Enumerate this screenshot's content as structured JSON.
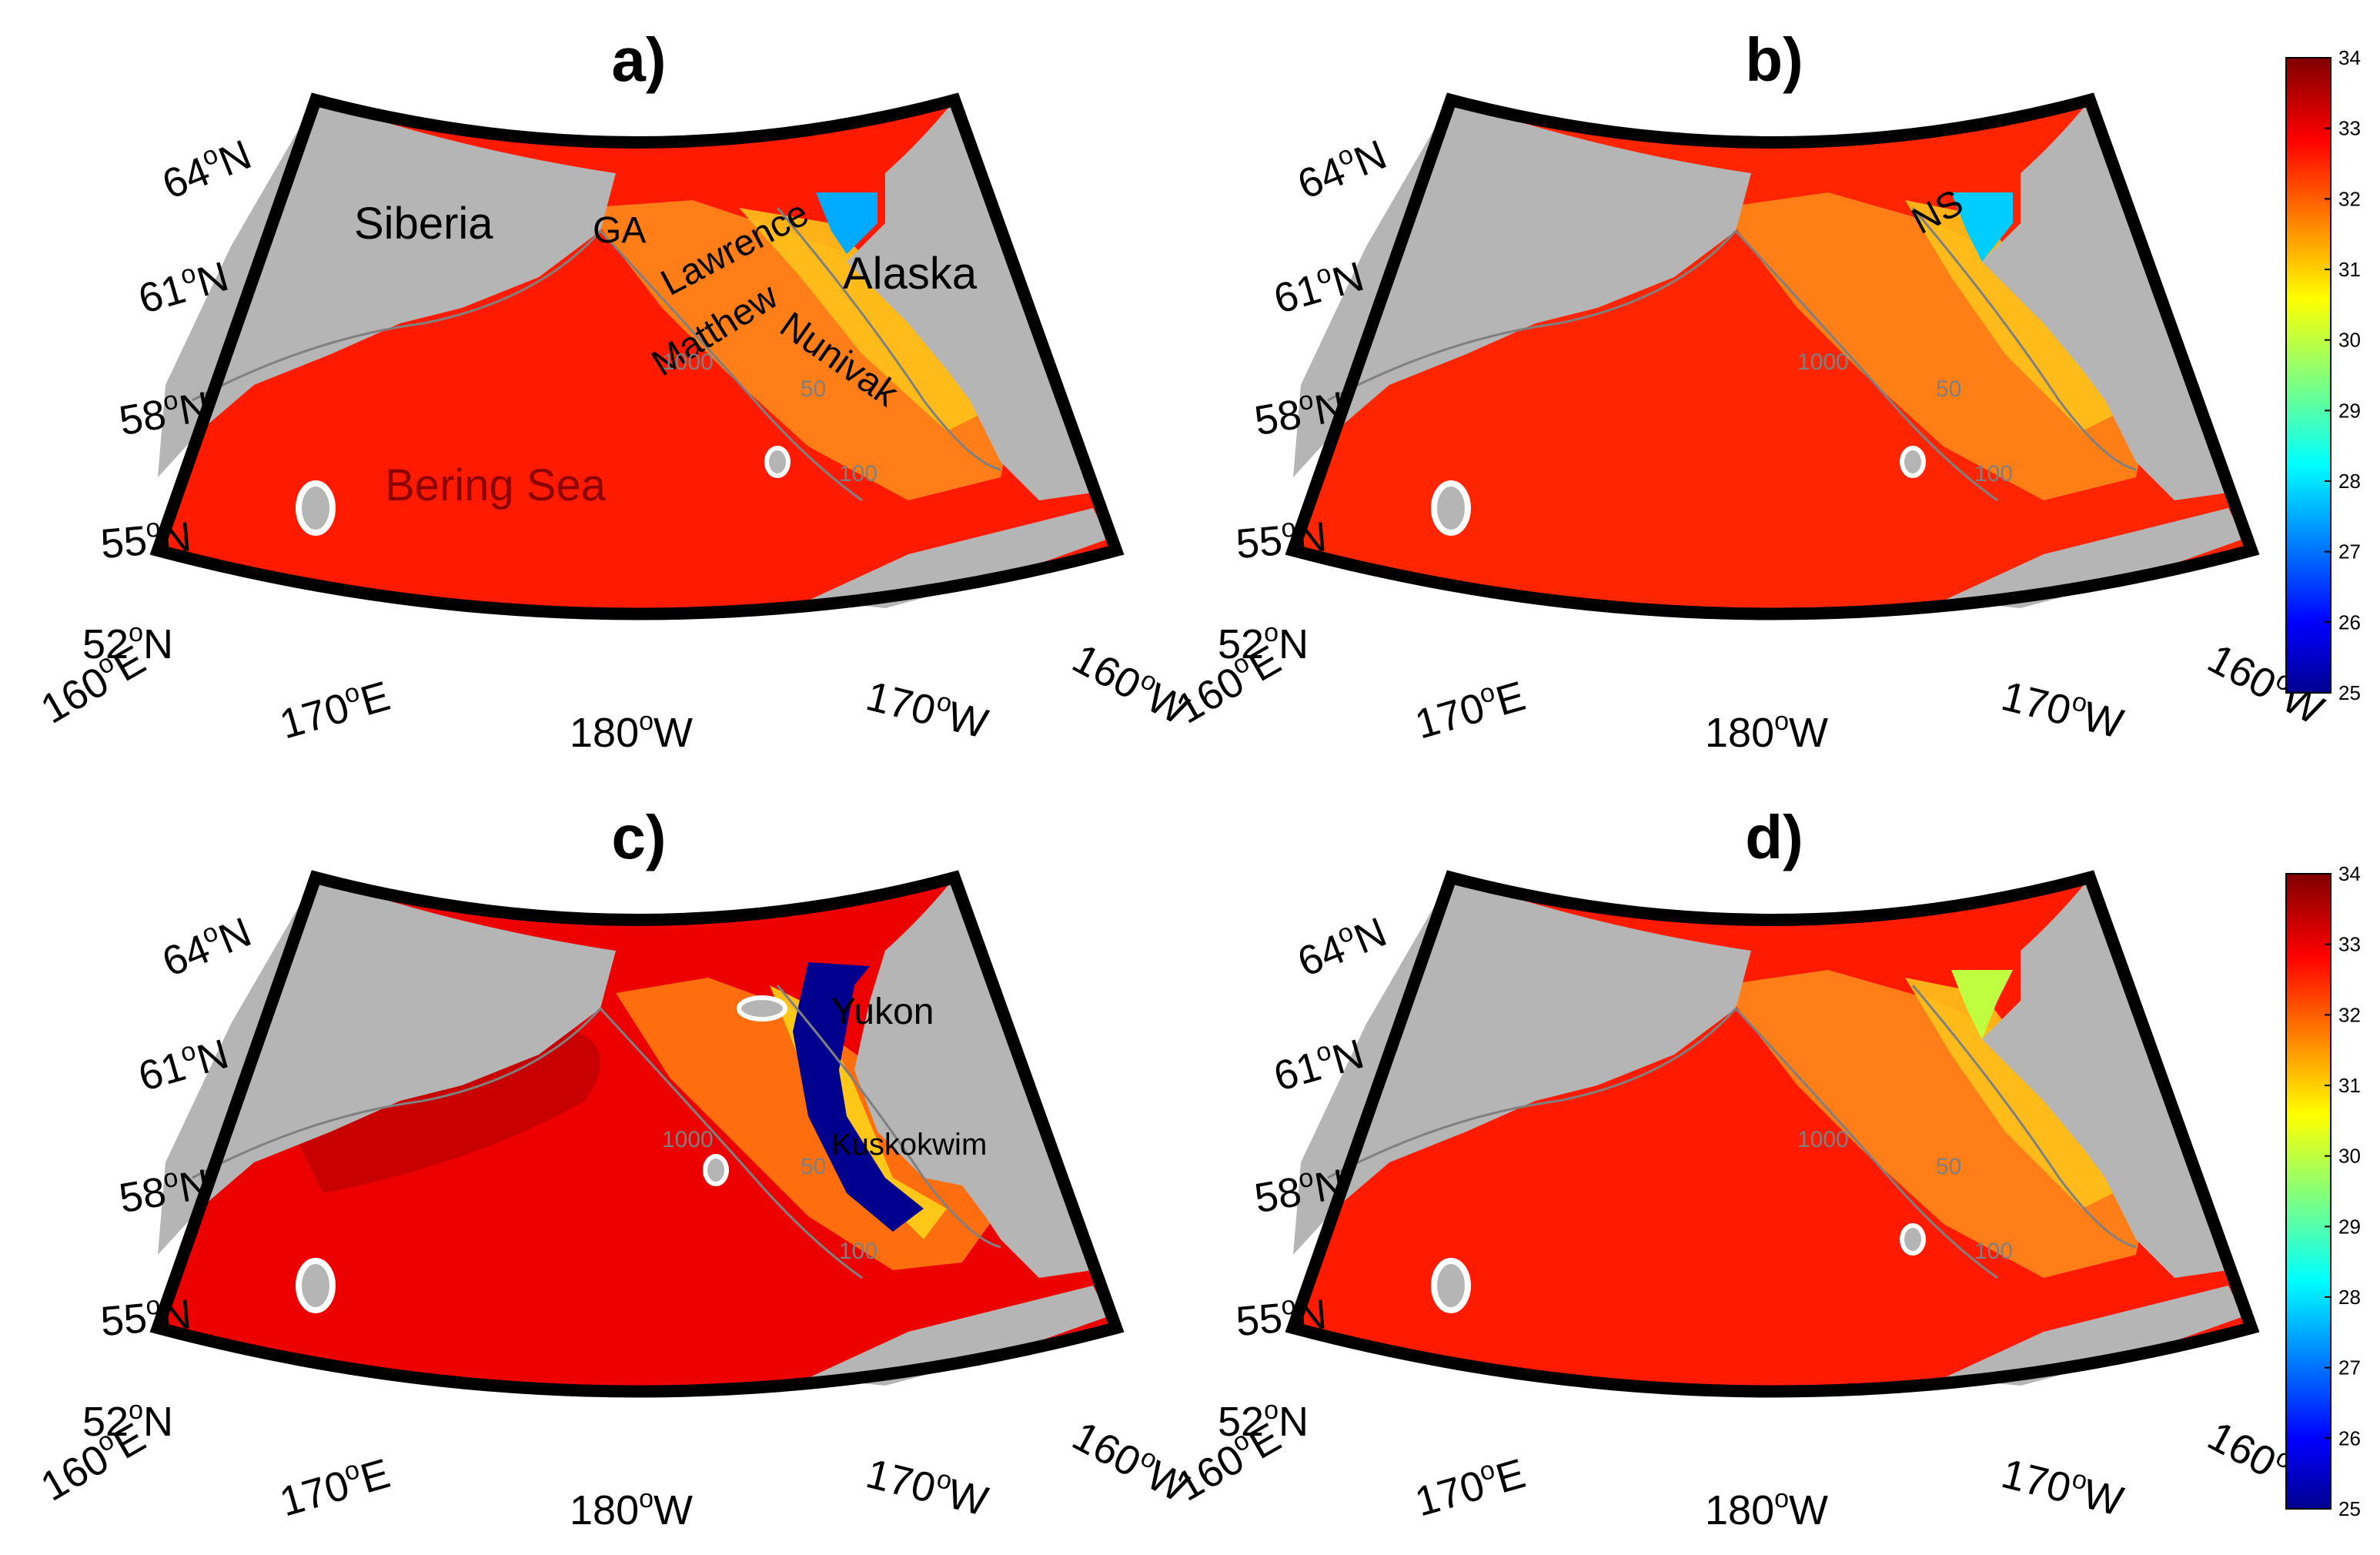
{
  "figure": {
    "panels": [
      {
        "id": "a",
        "title": "a)",
        "labels": {
          "Siberia": "Siberia",
          "GA": "GA",
          "Lawrence": "Lawrence",
          "Alaska": "Alaska",
          "Matthew": "Matthew",
          "Nunivak": "Nunivak",
          "Bering": "Bering Sea"
        },
        "extremes": {
          "plume_min_salinity": 27.5,
          "basin_salinity": 32.6
        }
      },
      {
        "id": "b",
        "title": "b)",
        "labels": {
          "NS": "NS"
        },
        "extremes": {
          "plume_min_salinity": 27.8,
          "basin_salinity": 32.5
        }
      },
      {
        "id": "c",
        "title": "c)",
        "labels": {
          "Yukon": "Yukon",
          "Kuskokwim": "Kuskokwim"
        },
        "extremes": {
          "plume_min_salinity": 25.0,
          "basin_salinity": 33.0
        }
      },
      {
        "id": "d",
        "title": "d)",
        "labels": {},
        "extremes": {
          "plume_min_salinity": 30.0,
          "basin_salinity": 32.6
        }
      }
    ],
    "lat_labels": [
      {
        "deg": "64",
        "hemi": "N"
      },
      {
        "deg": "61",
        "hemi": "N"
      },
      {
        "deg": "58",
        "hemi": "N"
      },
      {
        "deg": "55",
        "hemi": "N"
      },
      {
        "deg": "52",
        "hemi": "N"
      }
    ],
    "lon_labels": [
      {
        "deg": "160",
        "hemi": "E"
      },
      {
        "deg": "170",
        "hemi": "E"
      },
      {
        "deg": "180",
        "hemi": "W"
      },
      {
        "deg": "170",
        "hemi": "W"
      },
      {
        "deg": "160",
        "hemi": "W"
      }
    ],
    "degree_symbol": "o",
    "contour_labels": [
      "50",
      "100",
      "1000"
    ],
    "colorbar": {
      "min": 25,
      "max": 34,
      "ticks": [
        "25",
        "26",
        "27",
        "28",
        "29",
        "30",
        "31",
        "32",
        "33",
        "34"
      ],
      "colormap": "jet"
    },
    "colors": {
      "land": "#b5b5b5",
      "coast_white": "#ffffff",
      "contour": "#808080"
    }
  }
}
